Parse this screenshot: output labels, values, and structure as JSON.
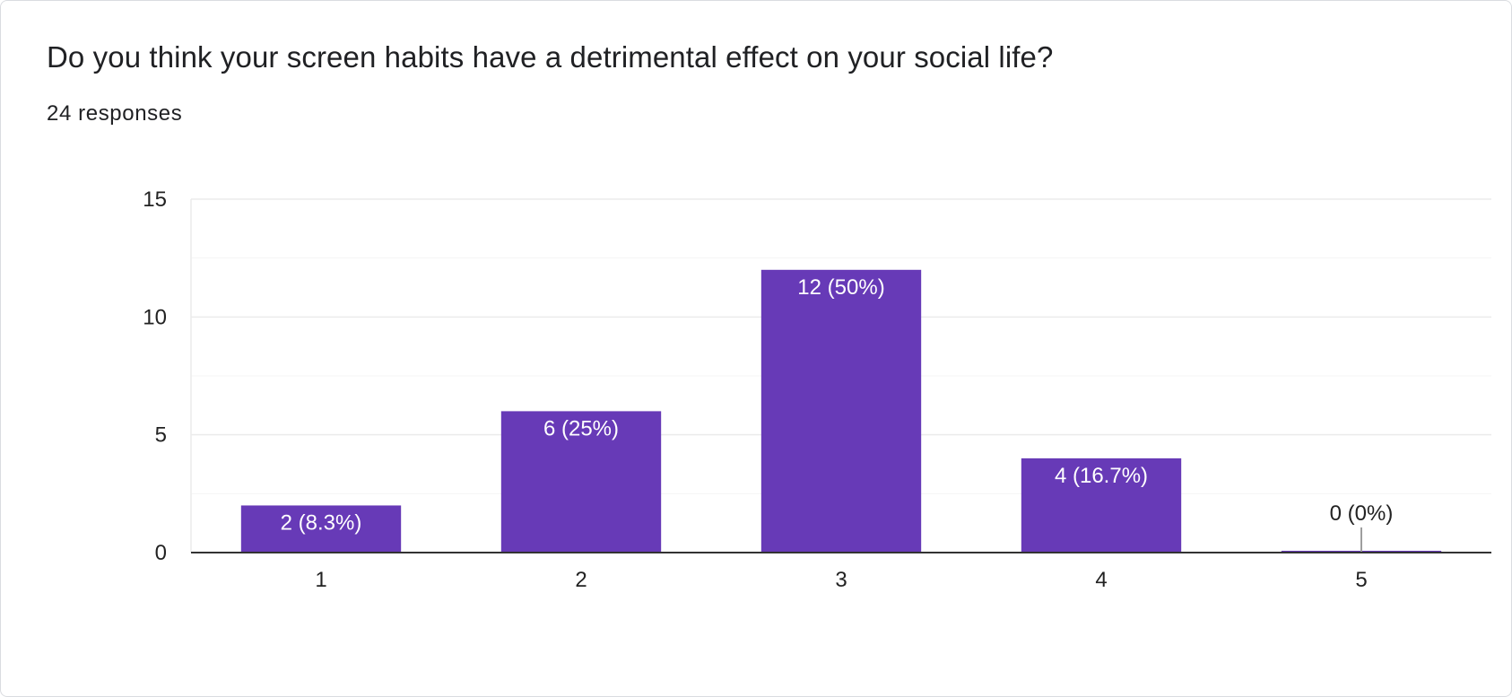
{
  "question": "Do you think your screen habits have a detrimental effect on your social life?",
  "response_count": "24 responses",
  "colors": {
    "bar": "#673ab7",
    "baseline": "#333333",
    "gridline": "#ebebeb",
    "minor_gridline": "#f5f5f5",
    "axis_text": "#222222",
    "inner_label": "#ffffff",
    "outer_label": "#222222",
    "zero_marker": "#9e9e9e"
  },
  "chart_data": {
    "type": "bar",
    "categories": [
      "1",
      "2",
      "3",
      "4",
      "5"
    ],
    "values": [
      2,
      6,
      12,
      4,
      0
    ],
    "labels": [
      "2 (8.3%)",
      "6 (25%)",
      "12 (50%)",
      "4 (16.7%)",
      "0 (0%)"
    ],
    "ylim": [
      0,
      15
    ],
    "yticks": [
      "0",
      "5",
      "10",
      "15"
    ],
    "minor_gridlines": [
      2.5,
      7.5,
      12.5
    ],
    "grid": true,
    "legend": "none",
    "xlabel": "",
    "ylabel": ""
  }
}
